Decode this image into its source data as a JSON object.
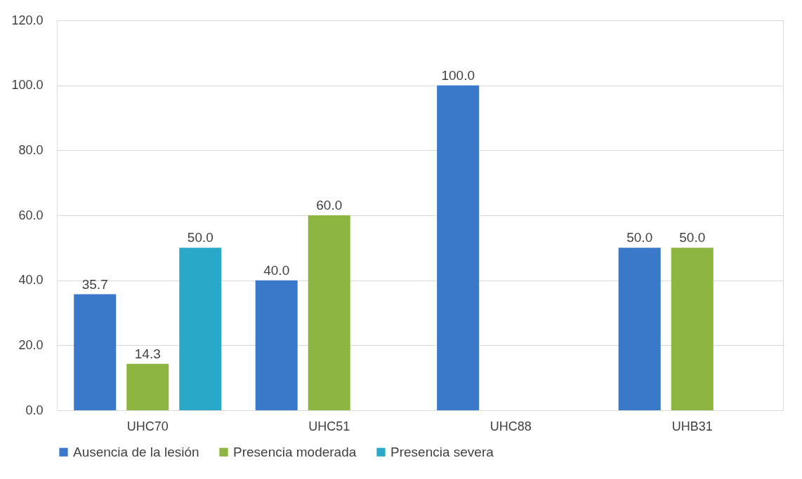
{
  "chart_data": {
    "type": "bar",
    "categories": [
      "UHC70",
      "UHC51",
      "UHC88",
      "UHB31"
    ],
    "series": [
      {
        "name": "Ausencia de la lesión",
        "color": "#3a78c9",
        "values": [
          35.7,
          40.0,
          100.0,
          50.0
        ],
        "value_labels": [
          "35.7",
          "40.0",
          "100.0",
          "50.0"
        ]
      },
      {
        "name": "Presencia moderada",
        "color": "#8db542",
        "values": [
          14.3,
          60.0,
          null,
          50.0
        ],
        "value_labels": [
          "14.3",
          "60.0",
          null,
          "50.0"
        ]
      },
      {
        "name": "Presencia severa",
        "color": "#2aa8c8",
        "values": [
          50.0,
          null,
          null,
          null
        ],
        "value_labels": [
          "50.0",
          null,
          null,
          null
        ]
      }
    ],
    "ylim": [
      0,
      120
    ],
    "yticks": [
      {
        "value": 0,
        "label": "0.0"
      },
      {
        "value": 20,
        "label": "20.0"
      },
      {
        "value": 40,
        "label": "40.0"
      },
      {
        "value": 60,
        "label": "60.0"
      },
      {
        "value": 80,
        "label": "80.0"
      },
      {
        "value": 100,
        "label": "100.0"
      },
      {
        "value": 120,
        "label": "120.0"
      }
    ],
    "grid": "y",
    "legend": "bottom"
  }
}
